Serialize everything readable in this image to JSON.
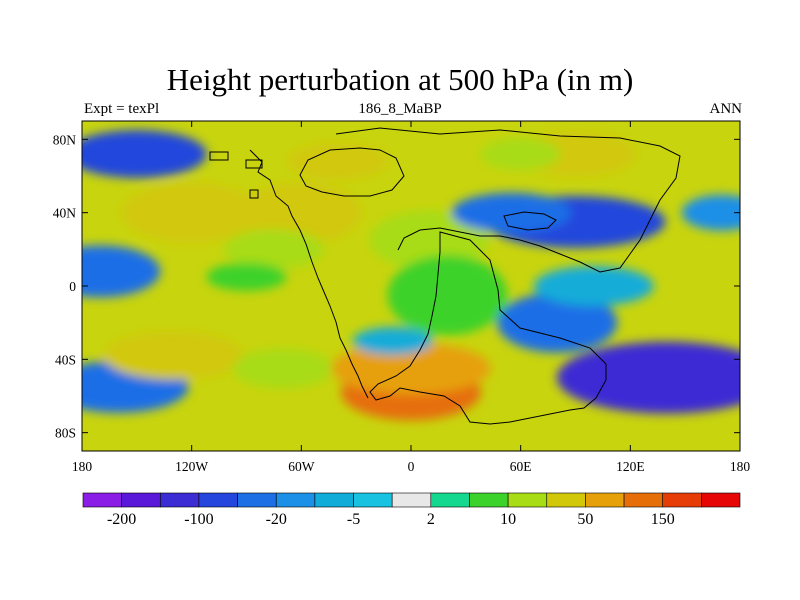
{
  "title": "Height perturbation at 500 hPa (in m)",
  "subtitle_left": "Expt = texPl",
  "subtitle_center": "186_8_MaBP",
  "subtitle_right": "ANN",
  "x_ticks": [
    "180",
    "120W",
    "60W",
    "0",
    "60E",
    "120E",
    "180"
  ],
  "y_ticks": [
    "80N",
    "40N",
    "0",
    "40S",
    "80S"
  ],
  "colorbar": {
    "colors": [
      "#8a1ee6",
      "#5a18d8",
      "#3c2cd4",
      "#2446dc",
      "#1e6ee6",
      "#1c8fe6",
      "#12acd8",
      "#18c2e0",
      "#e8e8e8",
      "#14d890",
      "#3cd22c",
      "#a8dc16",
      "#d2c80a",
      "#e6a00a",
      "#e66e08",
      "#e63c06",
      "#e60606"
    ],
    "labels": [
      "-200",
      "-100",
      "-20",
      "-5",
      "2",
      "10",
      "50",
      "150"
    ]
  },
  "chart_data": {
    "type": "heatmap",
    "title": "Height perturbation at 500 hPa (in m)",
    "subtitle": "186_8_MaBP",
    "experiment": "Expt = texPl",
    "period": "ANN",
    "x_range": [
      -180,
      180
    ],
    "y_range": [
      -90,
      90
    ],
    "x_ticks_deg": [
      -180,
      -120,
      -60,
      0,
      60,
      120,
      180
    ],
    "y_ticks_deg": [
      80,
      40,
      0,
      -40,
      -80
    ],
    "contour_levels": [
      -200,
      -100,
      -20,
      -5,
      2,
      10,
      50,
      150
    ],
    "features": [
      {
        "lon": -150,
        "lat": 72,
        "value": -60
      },
      {
        "lon": -170,
        "lat": 8,
        "value": -30
      },
      {
        "lon": -160,
        "lat": -55,
        "value": -25
      },
      {
        "lon": -120,
        "lat": 40,
        "value": 25
      },
      {
        "lon": -60,
        "lat": 40,
        "value": 40
      },
      {
        "lon": -75,
        "lat": 20,
        "value": 15
      },
      {
        "lon": -40,
        "lat": 68,
        "value": 30
      },
      {
        "lon": -130,
        "lat": -38,
        "value": 25
      },
      {
        "lon": -70,
        "lat": -45,
        "value": 15
      },
      {
        "lon": 0,
        "lat": -58,
        "value": 110
      },
      {
        "lon": 0,
        "lat": -45,
        "value": 60
      },
      {
        "lon": 10,
        "lat": 25,
        "value": 10
      },
      {
        "lon": 20,
        "lat": -5,
        "value": 8
      },
      {
        "lon": 90,
        "lat": 72,
        "value": 30
      },
      {
        "lon": 60,
        "lat": 72,
        "value": 10
      },
      {
        "lon": 90,
        "lat": 35,
        "value": -80
      },
      {
        "lon": 55,
        "lat": 40,
        "value": -40
      },
      {
        "lon": 140,
        "lat": -50,
        "value": -120
      },
      {
        "lon": 80,
        "lat": -20,
        "value": -25
      },
      {
        "lon": 100,
        "lat": 0,
        "value": -8
      },
      {
        "lon": 170,
        "lat": 40,
        "value": -15
      },
      {
        "lon": -10,
        "lat": -30,
        "value": -10
      },
      {
        "lon": -90,
        "lat": 5,
        "value": 5
      }
    ]
  }
}
